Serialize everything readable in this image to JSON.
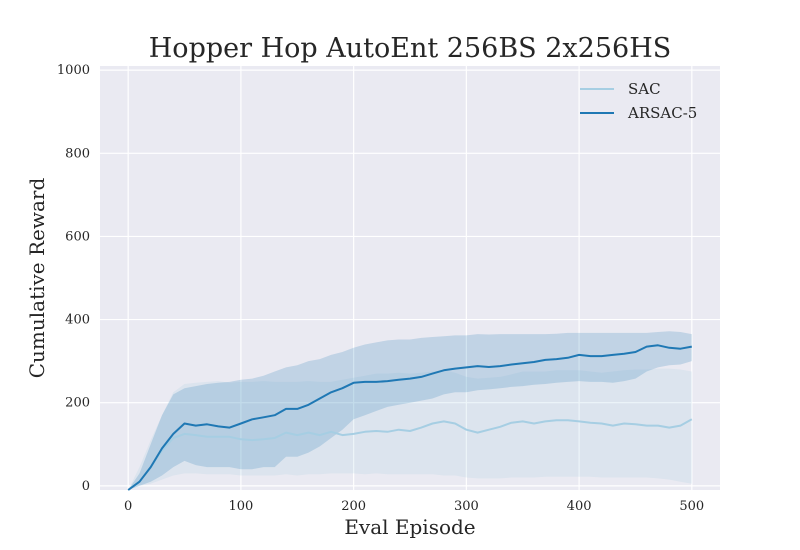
{
  "chart_data": {
    "type": "line",
    "title": "Hopper Hop AutoEnt 256BS 2x256HS",
    "xlabel": "Eval Episode",
    "ylabel": "Cumulative Reward",
    "xlim": [
      -25,
      525
    ],
    "ylim": [
      -10,
      1010
    ],
    "xticks": [
      0,
      100,
      200,
      300,
      400,
      500
    ],
    "yticks": [
      0,
      200,
      400,
      600,
      800,
      1000
    ],
    "grid": true,
    "legend_position": "top-right",
    "series": [
      {
        "name": "SAC",
        "color": "#a6cee3",
        "band_color": "#a6cee3",
        "x": [
          0,
          10,
          20,
          30,
          40,
          50,
          60,
          70,
          80,
          90,
          100,
          110,
          120,
          130,
          140,
          150,
          160,
          170,
          180,
          190,
          200,
          210,
          220,
          230,
          240,
          250,
          260,
          270,
          280,
          290,
          300,
          310,
          320,
          330,
          340,
          350,
          360,
          370,
          380,
          390,
          400,
          410,
          420,
          430,
          440,
          450,
          460,
          470,
          480,
          490,
          500
        ],
        "y": [
          -10,
          10,
          45,
          85,
          115,
          125,
          122,
          118,
          118,
          118,
          112,
          110,
          112,
          115,
          128,
          122,
          128,
          122,
          130,
          122,
          125,
          130,
          132,
          130,
          135,
          132,
          140,
          150,
          155,
          150,
          135,
          128,
          135,
          142,
          152,
          155,
          150,
          155,
          158,
          158,
          155,
          152,
          150,
          145,
          150,
          148,
          145,
          145,
          140,
          145,
          160
        ],
        "lower": [
          -10,
          0,
          5,
          15,
          25,
          30,
          30,
          28,
          28,
          28,
          25,
          25,
          25,
          25,
          28,
          25,
          28,
          28,
          30,
          30,
          30,
          28,
          30,
          28,
          28,
          28,
          28,
          28,
          25,
          25,
          20,
          18,
          18,
          18,
          20,
          20,
          20,
          22,
          22,
          22,
          22,
          22,
          20,
          20,
          20,
          20,
          20,
          18,
          15,
          10,
          5
        ],
        "upper": [
          -10,
          45,
          110,
          170,
          225,
          245,
          248,
          250,
          252,
          248,
          250,
          250,
          252,
          250,
          250,
          250,
          252,
          250,
          250,
          255,
          260,
          265,
          270,
          270,
          272,
          270,
          272,
          275,
          278,
          272,
          262,
          258,
          260,
          262,
          268,
          275,
          275,
          275,
          278,
          278,
          278,
          275,
          272,
          275,
          278,
          280,
          280,
          282,
          282,
          280,
          275
        ]
      },
      {
        "name": "ARSAC-5",
        "color": "#1f78b4",
        "band_color": "#1f78b4",
        "x": [
          0,
          10,
          20,
          30,
          40,
          50,
          60,
          70,
          80,
          90,
          100,
          110,
          120,
          130,
          140,
          150,
          160,
          170,
          180,
          190,
          200,
          210,
          220,
          230,
          240,
          250,
          260,
          270,
          280,
          290,
          300,
          310,
          320,
          330,
          340,
          350,
          360,
          370,
          380,
          390,
          400,
          410,
          420,
          430,
          440,
          450,
          460,
          470,
          480,
          490,
          500
        ],
        "y": [
          -10,
          10,
          45,
          90,
          125,
          150,
          145,
          148,
          143,
          140,
          150,
          160,
          165,
          170,
          185,
          185,
          195,
          210,
          225,
          235,
          248,
          250,
          250,
          252,
          255,
          258,
          262,
          270,
          278,
          282,
          285,
          288,
          286,
          288,
          292,
          295,
          298,
          303,
          305,
          308,
          315,
          312,
          312,
          315,
          318,
          322,
          335,
          338,
          332,
          330,
          335
        ],
        "lower": [
          -10,
          0,
          10,
          25,
          45,
          60,
          50,
          45,
          45,
          45,
          40,
          40,
          45,
          45,
          70,
          70,
          80,
          95,
          115,
          135,
          160,
          170,
          180,
          190,
          195,
          200,
          205,
          210,
          220,
          225,
          225,
          230,
          232,
          235,
          238,
          240,
          243,
          245,
          248,
          250,
          252,
          250,
          250,
          248,
          252,
          258,
          275,
          285,
          290,
          292,
          300
        ],
        "upper": [
          -10,
          30,
          100,
          170,
          220,
          235,
          240,
          245,
          248,
          250,
          255,
          258,
          265,
          275,
          285,
          290,
          300,
          305,
          315,
          322,
          332,
          340,
          345,
          350,
          352,
          352,
          356,
          358,
          360,
          362,
          362,
          365,
          364,
          365,
          365,
          365,
          365,
          365,
          366,
          368,
          368,
          368,
          368,
          368,
          368,
          368,
          368,
          370,
          372,
          370,
          365
        ]
      }
    ]
  },
  "style": {
    "plot_bg": "#eaeaf2",
    "grid_color": "#ffffff",
    "text_color": "#262626"
  }
}
